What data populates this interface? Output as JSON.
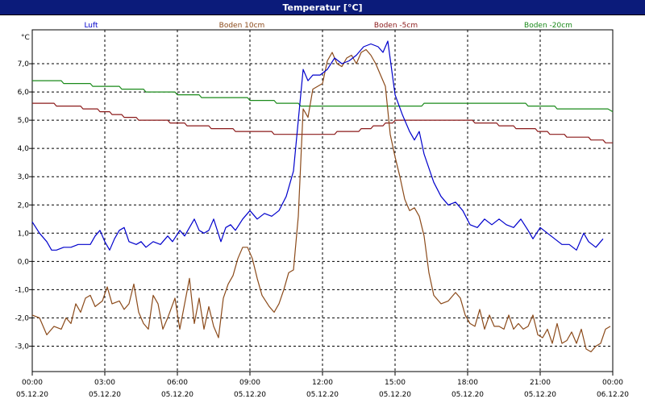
{
  "window": {
    "title": "Temperatur [°C]"
  },
  "chart_data": {
    "type": "line",
    "ylabel": "°C",
    "ylim": [
      -3.9,
      8.2
    ],
    "yticks": [
      7.0,
      6.0,
      5.0,
      4.0,
      3.0,
      2.0,
      1.0,
      0.0,
      -1.0,
      -2.0,
      -3.0
    ],
    "ytick_labels": [
      "7,0",
      "6,0",
      "5,0",
      "4,0",
      "3,0",
      "2,0",
      "1,0",
      "0,0",
      "-1,0",
      "-2,0",
      "-3,0"
    ],
    "xlim": [
      0,
      24
    ],
    "xticks": [
      0,
      3,
      6,
      9,
      12,
      15,
      18,
      21,
      24
    ],
    "xtick_labels": [
      {
        "time": "00:00",
        "date": "05.12.20"
      },
      {
        "time": "03:00",
        "date": "05.12.20"
      },
      {
        "time": "06:00",
        "date": "05.12.20"
      },
      {
        "time": "09:00",
        "date": "05.12.20"
      },
      {
        "time": "12:00",
        "date": "05.12.20"
      },
      {
        "time": "15:00",
        "date": "05.12.20"
      },
      {
        "time": "18:00",
        "date": "05.12.20"
      },
      {
        "time": "21:00",
        "date": "05.12.20"
      },
      {
        "time": "00:00",
        "date": "06.12.20"
      }
    ],
    "grid": true,
    "legend_position": "top",
    "series": [
      {
        "name": "Luft",
        "color": "#0000cc",
        "points": [
          [
            0.0,
            1.4
          ],
          [
            0.3,
            1.0
          ],
          [
            0.6,
            0.7
          ],
          [
            0.8,
            0.4
          ],
          [
            1.0,
            0.4
          ],
          [
            1.3,
            0.5
          ],
          [
            1.6,
            0.5
          ],
          [
            1.9,
            0.6
          ],
          [
            2.1,
            0.6
          ],
          [
            2.4,
            0.6
          ],
          [
            2.6,
            0.9
          ],
          [
            2.8,
            1.1
          ],
          [
            3.0,
            0.7
          ],
          [
            3.2,
            0.4
          ],
          [
            3.4,
            0.8
          ],
          [
            3.6,
            1.1
          ],
          [
            3.8,
            1.2
          ],
          [
            4.0,
            0.7
          ],
          [
            4.3,
            0.6
          ],
          [
            4.5,
            0.7
          ],
          [
            4.7,
            0.5
          ],
          [
            5.0,
            0.7
          ],
          [
            5.3,
            0.6
          ],
          [
            5.6,
            0.9
          ],
          [
            5.8,
            0.7
          ],
          [
            6.1,
            1.1
          ],
          [
            6.3,
            0.9
          ],
          [
            6.5,
            1.2
          ],
          [
            6.7,
            1.5
          ],
          [
            6.9,
            1.1
          ],
          [
            7.1,
            1.0
          ],
          [
            7.3,
            1.1
          ],
          [
            7.5,
            1.5
          ],
          [
            7.8,
            0.7
          ],
          [
            8.0,
            1.2
          ],
          [
            8.2,
            1.3
          ],
          [
            8.4,
            1.1
          ],
          [
            8.7,
            1.5
          ],
          [
            9.0,
            1.8
          ],
          [
            9.3,
            1.5
          ],
          [
            9.6,
            1.7
          ],
          [
            9.9,
            1.6
          ],
          [
            10.2,
            1.8
          ],
          [
            10.5,
            2.3
          ],
          [
            10.8,
            3.2
          ],
          [
            11.0,
            5.0
          ],
          [
            11.2,
            6.8
          ],
          [
            11.4,
            6.4
          ],
          [
            11.6,
            6.6
          ],
          [
            11.9,
            6.6
          ],
          [
            12.2,
            6.8
          ],
          [
            12.5,
            7.2
          ],
          [
            12.8,
            7.0
          ],
          [
            13.1,
            7.1
          ],
          [
            13.4,
            7.3
          ],
          [
            13.7,
            7.6
          ],
          [
            14.0,
            7.7
          ],
          [
            14.3,
            7.6
          ],
          [
            14.5,
            7.4
          ],
          [
            14.7,
            7.8
          ],
          [
            15.0,
            5.9
          ],
          [
            15.3,
            5.2
          ],
          [
            15.6,
            4.6
          ],
          [
            15.8,
            4.3
          ],
          [
            16.0,
            4.6
          ],
          [
            16.2,
            3.8
          ],
          [
            16.4,
            3.3
          ],
          [
            16.6,
            2.8
          ],
          [
            16.9,
            2.3
          ],
          [
            17.2,
            2.0
          ],
          [
            17.5,
            2.1
          ],
          [
            17.8,
            1.8
          ],
          [
            18.1,
            1.3
          ],
          [
            18.4,
            1.2
          ],
          [
            18.7,
            1.5
          ],
          [
            19.0,
            1.3
          ],
          [
            19.3,
            1.5
          ],
          [
            19.6,
            1.3
          ],
          [
            19.9,
            1.2
          ],
          [
            20.2,
            1.5
          ],
          [
            20.5,
            1.1
          ],
          [
            20.7,
            0.8
          ],
          [
            21.0,
            1.2
          ],
          [
            21.3,
            1.0
          ],
          [
            21.6,
            0.8
          ],
          [
            21.9,
            0.6
          ],
          [
            22.2,
            0.6
          ],
          [
            22.5,
            0.4
          ],
          [
            22.8,
            1.0
          ],
          [
            23.0,
            0.7
          ],
          [
            23.3,
            0.5
          ],
          [
            23.6,
            0.8
          ]
        ]
      },
      {
        "name": "Boden 10cm",
        "color": "#8b4a1a",
        "points": [
          [
            0.0,
            -1.9
          ],
          [
            0.3,
            -2.0
          ],
          [
            0.6,
            -2.6
          ],
          [
            0.9,
            -2.3
          ],
          [
            1.2,
            -2.4
          ],
          [
            1.4,
            -2.0
          ],
          [
            1.6,
            -2.2
          ],
          [
            1.8,
            -1.5
          ],
          [
            2.0,
            -1.8
          ],
          [
            2.2,
            -1.3
          ],
          [
            2.4,
            -1.2
          ],
          [
            2.6,
            -1.6
          ],
          [
            2.9,
            -1.4
          ],
          [
            3.1,
            -0.9
          ],
          [
            3.3,
            -1.5
          ],
          [
            3.6,
            -1.4
          ],
          [
            3.8,
            -1.7
          ],
          [
            4.0,
            -1.5
          ],
          [
            4.2,
            -0.8
          ],
          [
            4.4,
            -1.8
          ],
          [
            4.6,
            -2.2
          ],
          [
            4.8,
            -2.4
          ],
          [
            5.0,
            -1.2
          ],
          [
            5.2,
            -1.5
          ],
          [
            5.4,
            -2.4
          ],
          [
            5.6,
            -2.0
          ],
          [
            5.9,
            -1.3
          ],
          [
            6.1,
            -2.4
          ],
          [
            6.3,
            -1.5
          ],
          [
            6.5,
            -0.6
          ],
          [
            6.7,
            -2.2
          ],
          [
            6.9,
            -1.3
          ],
          [
            7.1,
            -2.4
          ],
          [
            7.3,
            -1.6
          ],
          [
            7.5,
            -2.3
          ],
          [
            7.7,
            -2.7
          ],
          [
            7.9,
            -1.3
          ],
          [
            8.1,
            -0.8
          ],
          [
            8.3,
            -0.5
          ],
          [
            8.5,
            0.1
          ],
          [
            8.7,
            0.5
          ],
          [
            8.9,
            0.5
          ],
          [
            9.1,
            0.1
          ],
          [
            9.3,
            -0.6
          ],
          [
            9.5,
            -1.2
          ],
          [
            9.8,
            -1.6
          ],
          [
            10.0,
            -1.8
          ],
          [
            10.2,
            -1.5
          ],
          [
            10.4,
            -1.0
          ],
          [
            10.6,
            -0.4
          ],
          [
            10.8,
            -0.3
          ],
          [
            11.0,
            1.6
          ],
          [
            11.2,
            5.4
          ],
          [
            11.4,
            5.1
          ],
          [
            11.6,
            6.1
          ],
          [
            11.8,
            6.2
          ],
          [
            12.0,
            6.3
          ],
          [
            12.2,
            7.1
          ],
          [
            12.4,
            7.4
          ],
          [
            12.6,
            7.0
          ],
          [
            12.8,
            6.9
          ],
          [
            13.0,
            7.2
          ],
          [
            13.2,
            7.3
          ],
          [
            13.4,
            7.0
          ],
          [
            13.6,
            7.4
          ],
          [
            13.8,
            7.5
          ],
          [
            14.0,
            7.3
          ],
          [
            14.2,
            7.0
          ],
          [
            14.4,
            6.6
          ],
          [
            14.6,
            6.2
          ],
          [
            14.8,
            4.5
          ],
          [
            15.0,
            3.7
          ],
          [
            15.2,
            3.0
          ],
          [
            15.4,
            2.2
          ],
          [
            15.6,
            1.8
          ],
          [
            15.8,
            1.9
          ],
          [
            16.0,
            1.6
          ],
          [
            16.2,
            0.9
          ],
          [
            16.4,
            -0.4
          ],
          [
            16.6,
            -1.2
          ],
          [
            16.9,
            -1.5
          ],
          [
            17.2,
            -1.4
          ],
          [
            17.5,
            -1.1
          ],
          [
            17.7,
            -1.3
          ],
          [
            17.9,
            -1.9
          ],
          [
            18.1,
            -2.2
          ],
          [
            18.3,
            -2.3
          ],
          [
            18.5,
            -1.7
          ],
          [
            18.7,
            -2.4
          ],
          [
            18.9,
            -1.9
          ],
          [
            19.1,
            -2.3
          ],
          [
            19.3,
            -2.3
          ],
          [
            19.5,
            -2.4
          ],
          [
            19.7,
            -1.9
          ],
          [
            19.9,
            -2.4
          ],
          [
            20.1,
            -2.2
          ],
          [
            20.3,
            -2.4
          ],
          [
            20.5,
            -2.3
          ],
          [
            20.7,
            -1.9
          ],
          [
            20.9,
            -2.6
          ],
          [
            21.1,
            -2.7
          ],
          [
            21.3,
            -2.4
          ],
          [
            21.5,
            -2.9
          ],
          [
            21.7,
            -2.2
          ],
          [
            21.9,
            -2.9
          ],
          [
            22.1,
            -2.8
          ],
          [
            22.3,
            -2.5
          ],
          [
            22.5,
            -2.9
          ],
          [
            22.7,
            -2.4
          ],
          [
            22.9,
            -3.1
          ],
          [
            23.1,
            -3.2
          ],
          [
            23.3,
            -3.0
          ],
          [
            23.5,
            -2.9
          ],
          [
            23.7,
            -2.4
          ],
          [
            23.9,
            -2.3
          ]
        ]
      },
      {
        "name": "Boden -5cm",
        "color": "#8b1a1a",
        "points": [
          [
            0.0,
            5.6
          ],
          [
            0.9,
            5.6
          ],
          [
            1.0,
            5.5
          ],
          [
            2.0,
            5.5
          ],
          [
            2.1,
            5.4
          ],
          [
            2.7,
            5.4
          ],
          [
            2.8,
            5.3
          ],
          [
            3.2,
            5.3
          ],
          [
            3.3,
            5.2
          ],
          [
            3.7,
            5.2
          ],
          [
            3.8,
            5.1
          ],
          [
            4.3,
            5.1
          ],
          [
            4.4,
            5.0
          ],
          [
            5.6,
            5.0
          ],
          [
            5.7,
            4.9
          ],
          [
            6.3,
            4.9
          ],
          [
            6.4,
            4.8
          ],
          [
            7.3,
            4.8
          ],
          [
            7.4,
            4.7
          ],
          [
            8.3,
            4.7
          ],
          [
            8.4,
            4.6
          ],
          [
            9.9,
            4.6
          ],
          [
            10.0,
            4.5
          ],
          [
            12.5,
            4.5
          ],
          [
            12.6,
            4.6
          ],
          [
            13.5,
            4.6
          ],
          [
            13.6,
            4.7
          ],
          [
            14.0,
            4.7
          ],
          [
            14.1,
            4.8
          ],
          [
            14.5,
            4.8
          ],
          [
            14.6,
            4.9
          ],
          [
            14.9,
            4.9
          ],
          [
            15.0,
            5.0
          ],
          [
            18.2,
            5.0
          ],
          [
            18.3,
            4.9
          ],
          [
            19.2,
            4.9
          ],
          [
            19.3,
            4.8
          ],
          [
            19.9,
            4.8
          ],
          [
            20.0,
            4.7
          ],
          [
            20.8,
            4.7
          ],
          [
            20.9,
            4.6
          ],
          [
            21.3,
            4.6
          ],
          [
            21.4,
            4.5
          ],
          [
            22.0,
            4.5
          ],
          [
            22.1,
            4.4
          ],
          [
            23.0,
            4.4
          ],
          [
            23.1,
            4.3
          ],
          [
            23.6,
            4.3
          ],
          [
            23.7,
            4.2
          ],
          [
            24.0,
            4.2
          ]
        ]
      },
      {
        "name": "Boden -20cm",
        "color": "#1a8a1a",
        "points": [
          [
            0.0,
            6.4
          ],
          [
            1.2,
            6.4
          ],
          [
            1.3,
            6.3
          ],
          [
            2.4,
            6.3
          ],
          [
            2.5,
            6.2
          ],
          [
            3.6,
            6.2
          ],
          [
            3.7,
            6.1
          ],
          [
            4.6,
            6.1
          ],
          [
            4.7,
            6.0
          ],
          [
            5.9,
            6.0
          ],
          [
            6.0,
            5.9
          ],
          [
            6.9,
            5.9
          ],
          [
            7.0,
            5.8
          ],
          [
            8.9,
            5.8
          ],
          [
            9.0,
            5.7
          ],
          [
            10.0,
            5.7
          ],
          [
            10.1,
            5.6
          ],
          [
            11.0,
            5.6
          ],
          [
            11.1,
            5.5
          ],
          [
            16.1,
            5.5
          ],
          [
            16.2,
            5.6
          ],
          [
            20.4,
            5.6
          ],
          [
            20.5,
            5.5
          ],
          [
            21.6,
            5.5
          ],
          [
            21.7,
            5.4
          ],
          [
            23.8,
            5.4
          ],
          [
            24.0,
            5.3
          ]
        ]
      }
    ]
  }
}
